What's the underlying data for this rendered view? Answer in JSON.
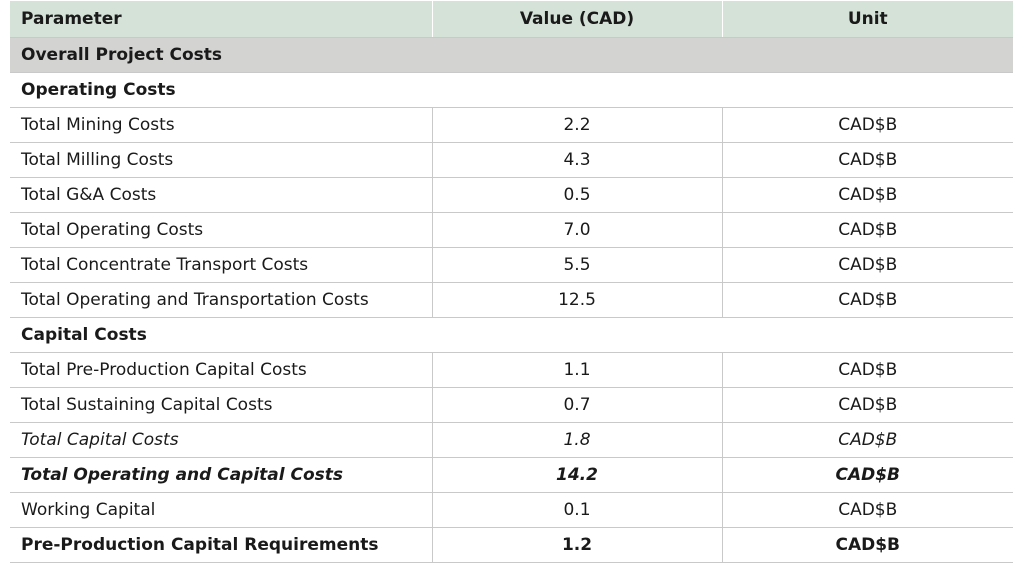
{
  "header": {
    "parameter": "Parameter",
    "value": "Value (CAD)",
    "unit": "Unit"
  },
  "section_title": "Overall Project Costs",
  "operating": {
    "title": "Operating Costs",
    "rows": [
      {
        "param": "Total Mining Costs",
        "value": "2.2",
        "unit": "CAD$B"
      },
      {
        "param": "Total Milling Costs",
        "value": "4.3",
        "unit": "CAD$B"
      },
      {
        "param": "Total G&A Costs",
        "value": "0.5",
        "unit": "CAD$B"
      },
      {
        "param": "Total Operating Costs",
        "value": "7.0",
        "unit": "CAD$B"
      },
      {
        "param": "Total Concentrate Transport Costs",
        "value": "5.5",
        "unit": "CAD$B"
      },
      {
        "param": "Total Operating and Transportation Costs",
        "value": "12.5",
        "unit": "CAD$B"
      }
    ]
  },
  "capital": {
    "title": "Capital Costs",
    "rows": [
      {
        "param": "Total Pre-Production Capital Costs",
        "value": "1.1",
        "unit": "CAD$B"
      },
      {
        "param": "Total Sustaining Capital Costs",
        "value": "0.7",
        "unit": "CAD$B"
      },
      {
        "param": "Total Capital Costs",
        "value": "1.8",
        "unit": "CAD$B"
      },
      {
        "param": "Total Operating and Capital Costs",
        "value": "14.2",
        "unit": "CAD$B"
      },
      {
        "param": "Working Capital",
        "value": "0.1",
        "unit": "CAD$B"
      },
      {
        "param": "Pre-Production Capital Requirements",
        "value": "1.2",
        "unit": "CAD$B"
      }
    ]
  }
}
